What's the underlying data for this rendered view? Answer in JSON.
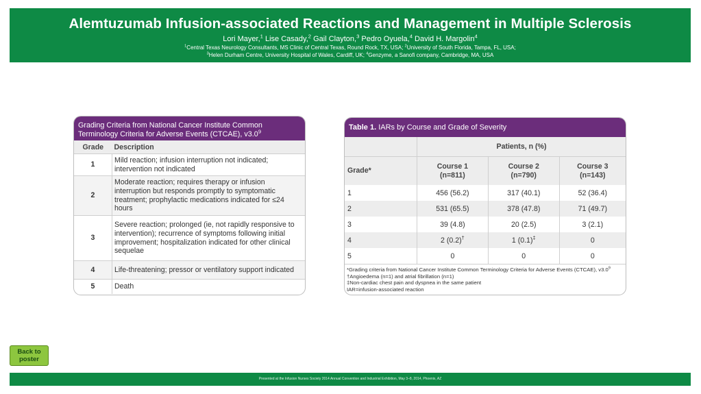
{
  "header": {
    "title": "Alemtuzumab Infusion-associated Reactions and Management in Multiple Sclerosis",
    "authors": [
      {
        "name": "Lori Mayer,",
        "sup": "1"
      },
      {
        "name": " Lise Casady,",
        "sup": "2"
      },
      {
        "name": " Gail Clayton,",
        "sup": "3"
      },
      {
        "name": " Pedro Oyuela,",
        "sup": "4"
      },
      {
        "name": " David H. Margolin",
        "sup": "4"
      }
    ],
    "affiliations": {
      "line1": [
        {
          "sup": "1",
          "text": "Central Texas Neurology Consultants, MS Clinic of Central Texas, Round Rock, TX, USA; "
        },
        {
          "sup": "2",
          "text": "University of South Florida, Tampa, FL, USA;"
        }
      ],
      "line2": [
        {
          "sup": "3",
          "text": "Helen Durham Centre, University Hospital of Wales, Cardiff, UK; "
        },
        {
          "sup": "4",
          "text": "Genzyme, a Sanofi company, Cambridge, MA, USA"
        }
      ]
    }
  },
  "grading": {
    "title": "Grading Criteria from National Cancer Institute Common Terminology Criteria for Adverse Events (CTCAE), v3.0",
    "title_sup": "9",
    "col_grade": "Grade",
    "col_desc": "Description",
    "rows": [
      {
        "grade": "1",
        "desc": "Mild reaction; infusion interruption not indicated; intervention not indicated"
      },
      {
        "grade": "2",
        "desc": "Moderate reaction; requires therapy or infusion interruption but responds promptly to symptomatic treatment; prophylactic medications indicated for ≤24 hours"
      },
      {
        "grade": "3",
        "desc": "Severe reaction; prolonged (ie, not rapidly responsive to intervention); recurrence of symptoms following initial improvement; hospitalization indicated for other clinical sequelae"
      },
      {
        "grade": "4",
        "desc": "Life-threatening; pressor or ventilatory support indicated"
      },
      {
        "grade": "5",
        "desc": "Death"
      }
    ]
  },
  "iars": {
    "title_bold": "Table 1.",
    "title_rest": " IARs by Course and Grade of Severity",
    "patients_header": "Patients, n (%)",
    "grade_header": "Grade*",
    "courses": [
      {
        "name": "Course 1",
        "n": "(n=811)"
      },
      {
        "name": "Course 2",
        "n": "(n=790)"
      },
      {
        "name": "Course 3",
        "n": "(n=143)"
      }
    ],
    "rows": [
      {
        "grade": "1",
        "c1": "456 (56.2)",
        "c2": "317 (40.1)",
        "c3": "52 (36.4)"
      },
      {
        "grade": "2",
        "c1": "531 (65.5)",
        "c2": "378 (47.8)",
        "c3": "71 (49.7)"
      },
      {
        "grade": "3",
        "c1": "39 (4.8)",
        "c2": "20 (2.5)",
        "c3": "3 (2.1)"
      },
      {
        "grade": "4",
        "c1": "2 (0.2)",
        "c1_sup": "†",
        "c2": "1 (0.1)",
        "c2_sup": "‡",
        "c3": "0"
      },
      {
        "grade": "5",
        "c1": "0",
        "c2": "0",
        "c3": "0"
      }
    ],
    "notes": {
      "n1": "*Grading criteria from National Cancer Institute Common Terminology Criteria for Adverse Events (CTCAE), v3.0",
      "n1_sup": "9",
      "n2": "†Angioedema (n=1) and atrial fibrillation (n=1)",
      "n3": "‡Non-cardiac chest pain and dyspnea in the same patient",
      "n4": "IAR=infusion-associated reaction"
    }
  },
  "back_button": {
    "line1": "Back to",
    "line2": "poster"
  },
  "footer": {
    "text": "Presented at the Infusion Nurses Society 2014 Annual Convention and Industrial Exhibition, May 3–8, 2014, Phoenix, AZ"
  },
  "colors": {
    "brand_green": "#0e8a45",
    "header_purple": "#6b2d7b",
    "button_green": "#8dc63f"
  }
}
